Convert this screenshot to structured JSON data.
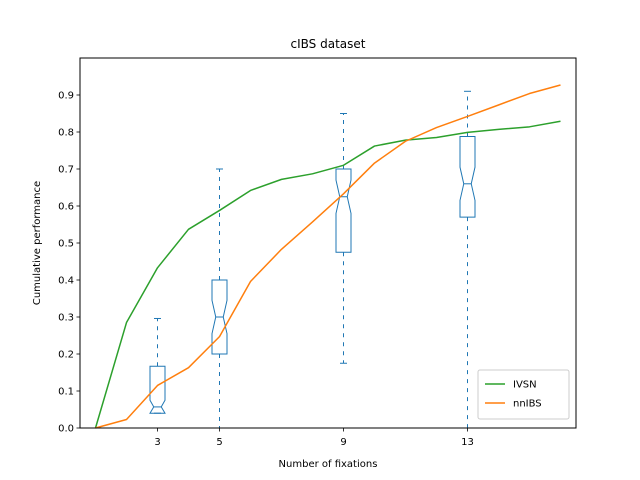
{
  "chart_data": {
    "type": "line",
    "title": "cIBS dataset",
    "xlabel": "Number of fixations",
    "ylabel": "Cumulative performance",
    "xlim": [
      0.5,
      16.5
    ],
    "ylim": [
      0,
      1.0
    ],
    "xticks": [
      3,
      5,
      9,
      13
    ],
    "yticks": [
      0.0,
      0.1,
      0.2,
      0.3,
      0.4,
      0.5,
      0.6,
      0.7,
      0.8,
      0.9
    ],
    "grid": false,
    "legend_position": "lower-right",
    "series": [
      {
        "name": "IVSN",
        "color": "#2ca02c",
        "x": [
          1,
          2,
          3,
          4,
          5,
          6,
          7,
          8,
          9,
          10,
          11,
          12,
          13,
          14,
          15,
          16
        ],
        "values": [
          0.0,
          0.285,
          0.433,
          0.537,
          0.588,
          0.642,
          0.672,
          0.687,
          0.71,
          0.762,
          0.778,
          0.785,
          0.799,
          0.807,
          0.814,
          0.829
        ]
      },
      {
        "name": "nnIBS",
        "color": "#ff7f0e",
        "x": [
          1,
          2,
          3,
          4,
          5,
          6,
          7,
          8,
          9,
          10,
          11,
          12,
          13,
          14,
          15,
          16
        ],
        "values": [
          0.0,
          0.023,
          0.115,
          0.163,
          0.247,
          0.396,
          0.483,
          0.557,
          0.633,
          0.716,
          0.775,
          0.812,
          0.842,
          0.873,
          0.904,
          0.927
        ]
      }
    ],
    "boxplots": {
      "color": "#1f77b4",
      "items": [
        {
          "x": 3,
          "whisker_low": 0.04,
          "q1": 0.04,
          "median": 0.057,
          "q3": 0.167,
          "whisker_high": 0.296,
          "notch_low": 0.04,
          "notch_high": 0.075
        },
        {
          "x": 5,
          "whisker_low": 0.0,
          "q1": 0.2,
          "median": 0.3,
          "q3": 0.4,
          "whisker_high": 0.7,
          "notch_low": 0.255,
          "notch_high": 0.345
        },
        {
          "x": 9,
          "whisker_low": 0.175,
          "q1": 0.475,
          "median": 0.625,
          "q3": 0.7,
          "whisker_high": 0.85,
          "notch_low": 0.58,
          "notch_high": 0.67
        },
        {
          "x": 13,
          "whisker_low": 0.0,
          "q1": 0.57,
          "median": 0.66,
          "q3": 0.788,
          "whisker_high": 0.91,
          "notch_low": 0.615,
          "notch_high": 0.705
        }
      ]
    }
  }
}
